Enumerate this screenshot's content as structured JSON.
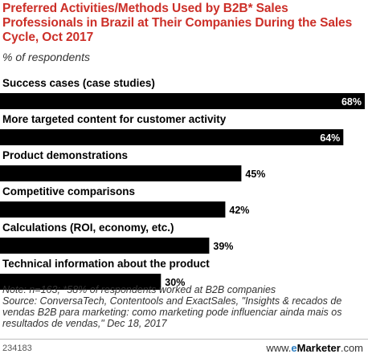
{
  "header": {
    "title": "Preferred Activities/Methods Used by B2B* Sales Professionals in Brazil at Their Companies During the Sales Cycle, Oct 2017",
    "subtitle": "% of respondents"
  },
  "chart_data": {
    "type": "bar",
    "orientation": "horizontal",
    "categories": [
      "Success cases (case studies)",
      "More targeted content for customer activity",
      "Product demonstrations",
      "Competitive comparisons",
      "Calculations (ROI, economy, etc.)",
      "Technical information about the product"
    ],
    "values": [
      68,
      64,
      45,
      42,
      39,
      30
    ],
    "value_labels": [
      "68%",
      "64%",
      "45%",
      "42%",
      "39%",
      "30%"
    ],
    "unit": "%",
    "xlim": [
      0,
      68
    ],
    "grid": false,
    "bar_color": "#000000",
    "title": "Preferred Activities/Methods Used by B2B* Sales Professionals in Brazil at Their Companies During the Sales Cycle, Oct 2017",
    "subtitle": "% of respondents"
  },
  "footer": {
    "note": "Note: n=163; *58% of respondents worked at B2B companies",
    "source": "Source: ConversaTech, Contentools and ExactSales, \"Insights & recados de vendas B2B para marketing: como marketing pode influenciar ainda mais os resultados de vendas,\" Dec 18, 2017",
    "chart_id": "234183",
    "brand_prefix": "www.",
    "brand_name": "eMarketer",
    "brand_suffix": ".com"
  },
  "colors": {
    "title": "#cc2f28",
    "bar": "#000000",
    "inside_label": "#ffffff",
    "outside_label": "#000000",
    "brand_accent": "#2b7ec2"
  }
}
